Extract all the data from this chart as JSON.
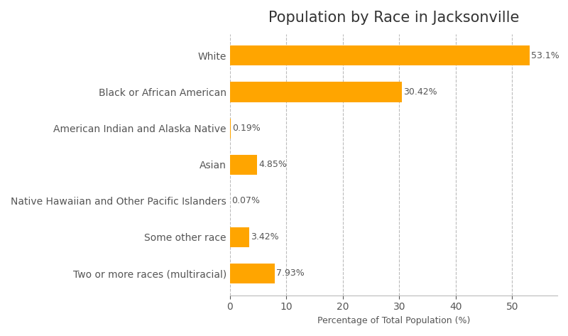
{
  "title": "Population by Race in Jacksonville",
  "xlabel": "Percentage of Total Population (%)",
  "categories": [
    "White",
    "Black or African American",
    "American Indian and Alaska Native",
    "Asian",
    "Native Hawaiian and Other Pacific Islanders",
    "Some other race",
    "Two or more races (multiracial)"
  ],
  "values": [
    53.1,
    30.42,
    0.19,
    4.85,
    0.07,
    3.42,
    7.93
  ],
  "labels": [
    "53.1%",
    "30.42%",
    "0.19%",
    "4.85%",
    "0.07%",
    "3.42%",
    "7.93%"
  ],
  "bar_color": "#FFA500",
  "background_color": "#FFFFFF",
  "grid_color": "#BBBBBB",
  "text_color": "#555555",
  "title_color": "#333333",
  "title_fontsize": 15,
  "label_fontsize": 9,
  "tick_fontsize": 10,
  "xlim": [
    0,
    58
  ],
  "xticks": [
    0,
    10,
    20,
    30,
    40,
    50
  ]
}
